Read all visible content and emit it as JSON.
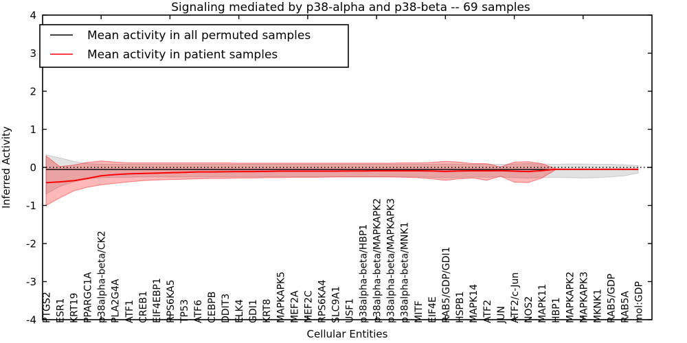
{
  "figure": {
    "title": "Signaling mediated by p38-alpha and p38-beta -- 69 samples",
    "xlabel": "Cellular Entities",
    "ylabel": "Inferred Activity"
  },
  "legend": {
    "position": "upper left",
    "items": [
      {
        "label": "Mean activity in all permuted samples",
        "color": "#000000"
      },
      {
        "label": "Mean activity in patient samples",
        "color": "#ff0000"
      }
    ]
  },
  "chart_data": {
    "type": "line",
    "title": "Signaling mediated by p38-alpha and p38-beta -- 69 samples",
    "xlabel": "Cellular Entities",
    "ylabel": "Inferred Activity",
    "ylim": [
      -4,
      4
    ],
    "grid": false,
    "zero_reference_line": {
      "value": 0,
      "style": "dotted",
      "color": "#000000"
    },
    "x_major_tick_every": 5,
    "yticklabels": [
      "4",
      "3",
      "2",
      "1",
      "0",
      "-1",
      "-2",
      "-3",
      "-4"
    ],
    "ytick_values": [
      4,
      3,
      2,
      1,
      0,
      -1,
      -2,
      -3,
      -4
    ],
    "categories": [
      "PTGS2",
      "ESR1",
      "KRT19",
      "PPARGC1A",
      "p38alpha-beta/CK2",
      "PLA2G4A",
      "ATF1",
      "CREB1",
      "EIF4EBP1",
      "RPS6KA5",
      "TP53",
      "ATF6",
      "CEBPB",
      "DDIT3",
      "ELK4",
      "GDI1",
      "KRT8",
      "MAPKAPK5",
      "MEF2A",
      "MEF2C",
      "RPS6KA4",
      "SLC9A1",
      "USF1",
      "p38alpha-beta/HBP1",
      "p38alpha-beta/MAPKAPK2",
      "p38alpha-beta/MAPKAPK3",
      "p38alpha-beta/MNK1",
      "MITF",
      "EIF4E",
      "RAB5/GDP/GDI1",
      "HSPB1",
      "MAPK14",
      "ATF2",
      "JUN",
      "ATF2/c-Jun",
      "NOS2",
      "MAPK11",
      "HBP1",
      "MAPKAPK2",
      "MAPKAPK3",
      "MKNK1",
      "RAB5/GDP",
      "RAB5A",
      "mol:GDP"
    ],
    "series": [
      {
        "name": "Mean activity in all permuted samples",
        "color": "#000000",
        "line_width": 1.3,
        "values": [
          -0.055,
          -0.055,
          -0.055,
          -0.055,
          -0.055,
          -0.055,
          -0.055,
          -0.055,
          -0.055,
          -0.055,
          -0.055,
          -0.055,
          -0.055,
          -0.055,
          -0.055,
          -0.055,
          -0.055,
          -0.055,
          -0.055,
          -0.055,
          -0.055,
          -0.055,
          -0.055,
          -0.055,
          -0.055,
          -0.055,
          -0.055,
          -0.055,
          -0.055,
          -0.055,
          -0.055,
          -0.055,
          -0.055,
          -0.055,
          -0.055,
          -0.055,
          -0.055,
          -0.055,
          -0.055,
          -0.055,
          -0.055,
          -0.055,
          -0.055,
          -0.055
        ]
      },
      {
        "name": "Mean activity in patient samples",
        "color": "#ff0000",
        "line_width": 2,
        "values": [
          -0.4,
          -0.38,
          -0.35,
          -0.29,
          -0.22,
          -0.19,
          -0.17,
          -0.16,
          -0.15,
          -0.14,
          -0.13,
          -0.12,
          -0.12,
          -0.115,
          -0.11,
          -0.11,
          -0.105,
          -0.1,
          -0.1,
          -0.1,
          -0.1,
          -0.1,
          -0.095,
          -0.095,
          -0.09,
          -0.09,
          -0.09,
          -0.09,
          -0.095,
          -0.105,
          -0.095,
          -0.09,
          -0.09,
          -0.085,
          -0.1,
          -0.11,
          -0.085,
          -0.05,
          -0.05,
          -0.05,
          -0.05,
          -0.05,
          -0.05,
          -0.05
        ]
      }
    ],
    "bands": [
      {
        "name": "permuted-samples-range",
        "color": "rgba(110,110,110,0.20)",
        "edge_color": "rgba(90,90,90,0.25)",
        "upper": [
          0.33,
          0.25,
          0.16,
          0.1,
          0.08,
          0.08,
          0.08,
          0.08,
          0.08,
          0.08,
          0.08,
          0.08,
          0.08,
          0.08,
          0.08,
          0.08,
          0.08,
          0.08,
          0.08,
          0.08,
          0.08,
          0.08,
          0.08,
          0.08,
          0.08,
          0.08,
          0.08,
          0.08,
          0.08,
          0.09,
          0.08,
          0.08,
          0.08,
          0.08,
          0.09,
          0.1,
          0.09,
          0.08,
          0.09,
          0.09,
          0.08,
          0.08,
          0.07,
          0.05
        ],
        "lower": [
          -0.7,
          -0.5,
          -0.38,
          -0.3,
          -0.27,
          -0.26,
          -0.26,
          -0.25,
          -0.25,
          -0.25,
          -0.25,
          -0.25,
          -0.25,
          -0.25,
          -0.25,
          -0.25,
          -0.25,
          -0.25,
          -0.25,
          -0.25,
          -0.25,
          -0.25,
          -0.25,
          -0.25,
          -0.25,
          -0.25,
          -0.25,
          -0.25,
          -0.26,
          -0.27,
          -0.26,
          -0.25,
          -0.26,
          -0.25,
          -0.27,
          -0.28,
          -0.27,
          -0.26,
          -0.27,
          -0.28,
          -0.27,
          -0.25,
          -0.22,
          -0.15
        ]
      },
      {
        "name": "patient-samples-range",
        "color": "rgba(255,0,0,0.28)",
        "edge_color": "rgba(255,0,0,0.45)",
        "upper": [
          0.3,
          0.02,
          0.06,
          0.13,
          0.17,
          0.14,
          0.12,
          0.12,
          0.12,
          0.12,
          0.12,
          0.12,
          0.12,
          0.12,
          0.11,
          0.11,
          0.11,
          0.11,
          0.11,
          0.11,
          0.11,
          0.11,
          0.11,
          0.11,
          0.11,
          0.11,
          0.12,
          0.12,
          0.13,
          0.16,
          0.14,
          0.1,
          0.1,
          0.01,
          0.14,
          0.15,
          0.1,
          -0.04,
          null,
          null,
          null,
          null,
          null,
          null
        ],
        "lower": [
          -1.0,
          -0.8,
          -0.62,
          -0.52,
          -0.46,
          -0.42,
          -0.38,
          -0.35,
          -0.33,
          -0.32,
          -0.31,
          -0.3,
          -0.29,
          -0.29,
          -0.28,
          -0.28,
          -0.27,
          -0.27,
          -0.26,
          -0.26,
          -0.26,
          -0.25,
          -0.25,
          -0.25,
          -0.25,
          -0.25,
          -0.26,
          -0.27,
          -0.3,
          -0.34,
          -0.3,
          -0.28,
          -0.34,
          -0.23,
          -0.39,
          -0.4,
          -0.28,
          -0.06,
          null,
          null,
          null,
          null,
          null,
          null
        ]
      }
    ]
  }
}
